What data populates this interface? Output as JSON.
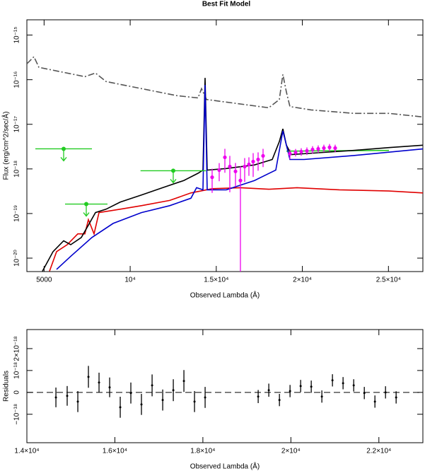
{
  "chart_data": [
    {
      "type": "line",
      "title": "Best Fit Model",
      "xlabel": "Observed Lambda (Å)",
      "ylabel": "Flux (erg/cm^2/sec/Å)",
      "xlim": [
        4000,
        27000
      ],
      "ylim": [
        5e-21,
        2.2e-15
      ],
      "log_y": true,
      "xticks": [
        5000,
        {
          "value": 10000,
          "label": "10⁴"
        },
        {
          "value": 15000,
          "label": "1.5×10⁴"
        },
        {
          "value": 20000,
          "label": "2×10⁴"
        },
        {
          "value": 25000,
          "label": "2.5×10⁴"
        }
      ],
      "yticks": [
        {
          "value": 1e-20,
          "label": "10⁻²⁰"
        },
        {
          "value": 1e-19,
          "label": "10⁻¹⁹"
        },
        {
          "value": 1e-18,
          "label": "10⁻¹⁸"
        },
        {
          "value": 1e-17,
          "label": "10⁻¹⁷"
        },
        {
          "value": 1e-16,
          "label": "10⁻¹⁶"
        },
        {
          "value": 1e-15,
          "label": "10⁻¹⁵"
        }
      ],
      "series": [
        {
          "color": "#555555",
          "style": "dash-dot",
          "x": [
            4000,
            4411,
            4698,
            5725,
            7368,
            7984,
            8600,
            10653,
            12707,
            13939,
            14144,
            14431,
            15992,
            18046,
            18662,
            18867,
            19073,
            19278,
            20510,
            22974,
            25027,
            27000
          ],
          "values": [
            2.27e-16,
            3.27e-16,
            1.89e-16,
            1.57e-16,
            1.17e-16,
            1.41e-16,
            9.1e-17,
            6.3e-17,
            4.4e-17,
            3.9e-17,
            6.3e-17,
            3.6e-17,
            3e-17,
            2.35e-17,
            3.6e-17,
            1.31e-16,
            5.3e-17,
            2.5e-17,
            2.1e-17,
            1.76e-17,
            1.76e-17,
            1.46e-17
          ]
        },
        {
          "color": "#e00000",
          "style": "solid",
          "x": [
            5314,
            5725,
            6341,
            6957,
            7368,
            7573,
            7901,
            8189,
            9421,
            10653,
            12296,
            13528,
            14760,
            16403,
            18046,
            19689,
            22153,
            25027,
            27000
          ],
          "values": [
            5.1e-21,
            1.4e-20,
            2e-20,
            3.5e-20,
            3.5e-20,
            7.3e-20,
            3.5e-20,
            1.05e-19,
            1.25e-19,
            1.5e-19,
            1.97e-19,
            2.9e-19,
            3.6e-19,
            3.8e-19,
            3.5e-19,
            3.8e-19,
            3.4e-19,
            3.2e-19,
            2.9e-19
          ]
        },
        {
          "color": "#22cc22",
          "style": "solid",
          "x": [
            19073,
            25027
          ],
          "values": [
            2.5e-18,
            2.6e-18
          ]
        },
        {
          "color": "#000000",
          "style": "solid",
          "x": [
            4904,
            5520,
            6136,
            6546,
            7162,
            7573,
            7984,
            8600,
            9421,
            10653,
            11885,
            13117,
            13939,
            14226,
            14349,
            14472,
            15582,
            17225,
            18251,
            18662,
            18867,
            19073,
            19360,
            20921,
            22974,
            25027,
            27000
          ],
          "values": [
            5.1e-21,
            1.4e-20,
            2.45e-20,
            2e-20,
            2.9e-20,
            5.5e-20,
            1.05e-19,
            1.25e-19,
            1.8e-19,
            2.6e-19,
            3.8e-19,
            5.5e-19,
            8e-19,
            9.4e-19,
            1.1e-16,
            9.4e-19,
            1.02e-18,
            1.23e-18,
            1.63e-18,
            4.1e-18,
            7.9e-18,
            3.4e-18,
            2.1e-18,
            2.3e-18,
            2.6e-18,
            3e-18,
            3.4e-18
          ]
        },
        {
          "color": "#0000cc",
          "style": "solid",
          "x": [
            5725,
            6546,
            7778,
            9010,
            10653,
            12296,
            13528,
            13856,
            14226,
            14349,
            14472,
            15582,
            17225,
            18457,
            18867,
            19278,
            20100,
            22974,
            27000
          ],
          "values": [
            5.6e-21,
            1.1e-20,
            2.9e-20,
            6e-20,
            1.05e-19,
            1.5e-19,
            2.2e-19,
            3.8e-19,
            3.4e-19,
            7.6e-17,
            3.4e-19,
            3.4e-19,
            5.5e-19,
            9.4e-19,
            7.1e-18,
            1.63e-18,
            1.63e-18,
            2e-18,
            2.8e-18
          ]
        }
      ],
      "photometry": {
        "color": "#ee00ee",
        "x": [
          14760,
          15171,
          15500,
          15787,
          16116,
          16403,
          16650,
          16896,
          17143,
          17430,
          17718,
          19278,
          19607,
          19935,
          20264,
          20593,
          20921,
          21250,
          21579,
          21906
        ],
        "values": [
          6.5e-19,
          9.4e-19,
          1.82e-18,
          1.13e-18,
          8.8e-19,
          5.5e-19,
          1.13e-18,
          1.26e-18,
          1.46e-18,
          1.63e-18,
          1.96e-18,
          2.19e-18,
          2.35e-18,
          2.44e-18,
          2.54e-18,
          2.72e-18,
          2.82e-18,
          2.93e-18,
          3.04e-18,
          2.93e-18
        ],
        "errors": [
          3.6e-19,
          4.1e-19,
          1e-18,
          8.3e-19,
          4.8e-19,
          5.9e-19,
          6.2e-19,
          5.6e-19,
          8e-19,
          7.2e-19,
          8.6e-19,
          5.4e-19,
          4.5e-19,
          4.7e-19,
          4.9e-19,
          5.2e-19,
          5.4e-19,
          5.6e-19,
          5.8e-19,
          5.6e-19
        ]
      },
      "upper_limits": {
        "color": "#22cc22",
        "x": [
          6136,
          7450,
          12501
        ],
        "values": [
          2.82e-18,
          1.63e-19,
          9.1e-19
        ],
        "xerrors": [
          1643,
          1232,
          1900
        ]
      }
    },
    {
      "type": "errorbar",
      "xlabel": "Observed Lambda (Å)",
      "ylabel": "Residuals",
      "xlim": [
        14000,
        23000
      ],
      "ylim": [
        -2.3e-18,
        2.87e-18
      ],
      "zero_line": true,
      "color": "#000000",
      "xticks": [
        {
          "value": 14000,
          "label": "1.4×10⁴"
        },
        {
          "value": 16000,
          "label": "1.6×10⁴"
        },
        {
          "value": 18000,
          "label": "1.8×10⁴"
        },
        {
          "value": 20000,
          "label": "2×10⁴"
        },
        {
          "value": 22000,
          "label": "2.2×10⁴"
        }
      ],
      "yticks": [
        {
          "value": -1e-18,
          "label": "−10⁻¹⁸"
        },
        0,
        {
          "value": 1e-18,
          "label": "10⁻¹⁸"
        },
        {
          "value": 2e-18,
          "label": "2×10⁻¹⁸"
        }
      ],
      "x": [
        14660,
        14916,
        15158,
        15399,
        15640,
        15881,
        16122,
        16363,
        16604,
        16846,
        17087,
        17328,
        17569,
        17810,
        18051,
        19257,
        19498,
        19740,
        19981,
        20222,
        20463,
        20704,
        20945,
        21186,
        21428,
        21669,
        21910,
        22151,
        22392
      ],
      "values": [
        -2.3e-19,
        -1.6e-19,
        -4.2e-19,
        7.1e-19,
        4.5e-19,
        2.3e-19,
        -6.8e-19,
        -3e-20,
        -5.5e-19,
        3.2e-19,
        -3.5e-19,
        1e-19,
        5.2e-19,
        -4.2e-19,
        -2.3e-19,
        -1.9e-19,
        1e-19,
        -3.5e-19,
        6e-20,
        2.9e-19,
        2.6e-19,
        -1.9e-19,
        5.5e-19,
        4.2e-19,
        3.2e-19,
        -3e-20,
        -4.2e-19,
        0,
        -2.3e-19
      ],
      "errors": [
        4.5e-19,
        4.5e-19,
        4.8e-19,
        5e-19,
        4.5e-19,
        4.5e-19,
        4.8e-19,
        4.8e-19,
        4.8e-19,
        5e-19,
        4.8e-19,
        5e-19,
        5e-19,
        4.8e-19,
        4.8e-19,
        3e-19,
        3e-19,
        2.8e-19,
        2.8e-19,
        2.8e-19,
        2.8e-19,
        2.8e-19,
        2.8e-19,
        2.8e-19,
        2.8e-19,
        2.8e-19,
        2.8e-19,
        2.8e-19,
        2.8e-19
      ]
    }
  ]
}
